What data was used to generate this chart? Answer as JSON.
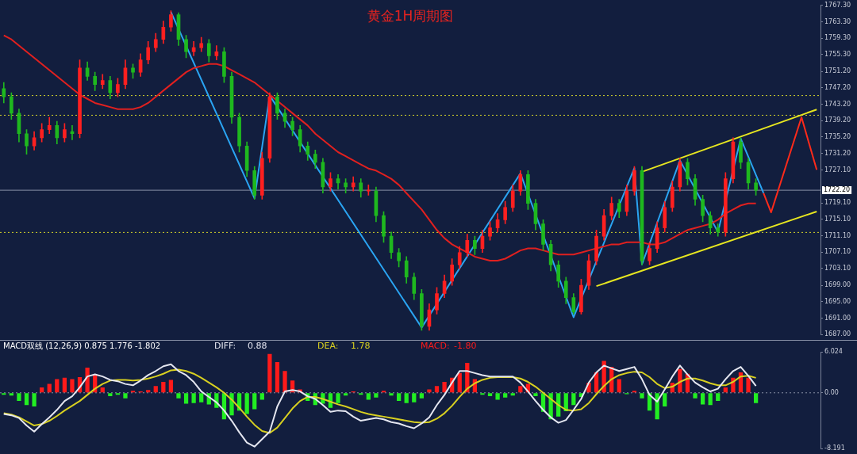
{
  "chart_data": [
    {
      "type": "candlestick",
      "title": "黄金1H周期图",
      "categories": [
        null,
        null,
        null,
        null,
        null,
        null,
        null,
        null,
        null,
        null,
        null,
        null,
        null,
        null,
        null,
        null,
        null,
        null,
        null,
        null,
        null,
        null,
        null,
        null,
        null,
        null,
        null,
        null,
        null,
        null,
        null,
        null,
        null,
        null,
        null,
        null,
        null,
        null,
        null,
        null,
        null,
        null,
        null,
        null,
        null,
        null,
        null,
        null,
        null,
        null,
        null,
        null,
        null,
        null,
        null,
        null,
        null,
        null,
        null,
        null,
        null,
        null,
        null,
        null,
        null,
        null,
        null,
        null,
        null,
        null,
        null,
        null,
        null,
        null,
        null,
        null,
        null,
        null,
        null,
        null,
        null,
        null,
        null,
        null,
        null,
        null,
        null,
        null,
        null,
        null,
        null,
        null,
        null,
        null,
        null,
        null,
        null,
        null,
        null,
        null,
        null,
        null,
        null,
        null,
        null,
        null,
        null,
        null
      ],
      "ohlc": [
        [
          1747,
          1748.5,
          1743.5,
          1745
        ],
        [
          1745,
          1746,
          1739.5,
          1741
        ],
        [
          1741,
          1742,
          1734,
          1736
        ],
        [
          1736,
          1737,
          1731,
          1733
        ],
        [
          1733,
          1736.5,
          1732,
          1735
        ],
        [
          1735,
          1738.5,
          1734,
          1737
        ],
        [
          1737,
          1740,
          1736,
          1738
        ],
        [
          1738,
          1739,
          1733.5,
          1735
        ],
        [
          1735,
          1738.5,
          1734,
          1737
        ],
        [
          1736.5,
          1738,
          1734.5,
          1736
        ],
        [
          1736,
          1754,
          1735,
          1752
        ],
        [
          1752,
          1753.5,
          1749,
          1750
        ],
        [
          1750,
          1751,
          1746.5,
          1748
        ],
        [
          1748,
          1750.5,
          1747,
          1749
        ],
        [
          1749,
          1750,
          1744.5,
          1746
        ],
        [
          1746,
          1749.5,
          1745,
          1748
        ],
        [
          1748,
          1754,
          1747,
          1752
        ],
        [
          1752,
          1753,
          1749.5,
          1751
        ],
        [
          1751,
          1755.5,
          1750,
          1754
        ],
        [
          1754,
          1758.5,
          1753,
          1757
        ],
        [
          1757,
          1760.5,
          1756,
          1759
        ],
        [
          1759,
          1763.5,
          1758,
          1762
        ],
        [
          1762,
          1766,
          1761,
          1765
        ],
        [
          1765,
          1765.5,
          1757.5,
          1759
        ],
        [
          1759,
          1760,
          1754.5,
          1756
        ],
        [
          1756,
          1758.5,
          1755,
          1757
        ],
        [
          1757,
          1759.5,
          1756,
          1758
        ],
        [
          1758,
          1759,
          1753.5,
          1755
        ],
        [
          1755,
          1757.5,
          1754,
          1756
        ],
        [
          1756,
          1757,
          1748.5,
          1750
        ],
        [
          1750,
          1751,
          1738.5,
          1740
        ],
        [
          1740,
          1741,
          1731.5,
          1733
        ],
        [
          1733,
          1734,
          1725.5,
          1727
        ],
        [
          1727,
          1728,
          1720,
          1721
        ],
        [
          1721,
          1731.5,
          1720,
          1730
        ],
        [
          1730,
          1746,
          1729,
          1745
        ],
        [
          1745,
          1746,
          1739.5,
          1741
        ],
        [
          1741,
          1742,
          1737.5,
          1739
        ],
        [
          1739,
          1740,
          1735.5,
          1737
        ],
        [
          1737,
          1738,
          1731.5,
          1733
        ],
        [
          1733,
          1734,
          1729.5,
          1731
        ],
        [
          1731,
          1732,
          1727.5,
          1729
        ],
        [
          1729,
          1730,
          1721.5,
          1723
        ],
        [
          1723,
          1726.5,
          1722,
          1725
        ],
        [
          1725,
          1726,
          1722.5,
          1724
        ],
        [
          1724,
          1725,
          1721.5,
          1723
        ],
        [
          1723,
          1725.5,
          1722,
          1724
        ],
        [
          1724,
          1725,
          1720.5,
          1722
        ],
        [
          1722,
          1723.5,
          1721,
          1722
        ],
        [
          1722,
          1723,
          1714.5,
          1716
        ],
        [
          1716,
          1717,
          1709.5,
          1711
        ],
        [
          1711,
          1712,
          1705.5,
          1707
        ],
        [
          1707,
          1708,
          1703.5,
          1705
        ],
        [
          1705,
          1706,
          1699.5,
          1701
        ],
        [
          1701,
          1702,
          1695.5,
          1697
        ],
        [
          1697,
          1698,
          1688,
          1689
        ],
        [
          1689,
          1694.5,
          1688,
          1693
        ],
        [
          1693,
          1698.5,
          1692,
          1697
        ],
        [
          1697,
          1701.5,
          1696,
          1700
        ],
        [
          1700,
          1705.5,
          1699,
          1704
        ],
        [
          1704,
          1708.5,
          1703,
          1707
        ],
        [
          1707,
          1711.5,
          1706,
          1710
        ],
        [
          1710,
          1711,
          1706.5,
          1708
        ],
        [
          1708,
          1712.5,
          1707,
          1711
        ],
        [
          1711,
          1714.5,
          1710,
          1713
        ],
        [
          1713,
          1716.5,
          1712,
          1715
        ],
        [
          1715,
          1719.5,
          1714,
          1718
        ],
        [
          1718,
          1723.5,
          1717,
          1722
        ],
        [
          1722,
          1727,
          1721,
          1726
        ],
        [
          1726,
          1727,
          1717.5,
          1719
        ],
        [
          1719,
          1720,
          1712.5,
          1714
        ],
        [
          1714,
          1715,
          1707.5,
          1709
        ],
        [
          1709,
          1710,
          1702.5,
          1704
        ],
        [
          1704,
          1705,
          1698.5,
          1700
        ],
        [
          1700,
          1701,
          1694.5,
          1696
        ],
        [
          1696,
          1697,
          1692,
          1692.5
        ],
        [
          1692.5,
          1700.5,
          1692,
          1699
        ],
        [
          1699,
          1706.5,
          1698,
          1705
        ],
        [
          1705,
          1712.5,
          1704,
          1711
        ],
        [
          1711,
          1717.5,
          1710,
          1716
        ],
        [
          1716,
          1720.5,
          1715,
          1719
        ],
        [
          1719,
          1720,
          1715.5,
          1717
        ],
        [
          1717,
          1723.5,
          1716,
          1722
        ],
        [
          1722,
          1728,
          1721,
          1727
        ],
        [
          1727,
          1728,
          1704,
          1705
        ],
        [
          1705,
          1709.5,
          1704,
          1708
        ],
        [
          1708,
          1714.5,
          1707,
          1713
        ],
        [
          1713,
          1719.5,
          1712,
          1718
        ],
        [
          1718,
          1724.5,
          1717,
          1723
        ],
        [
          1723,
          1730,
          1722,
          1729
        ],
        [
          1729,
          1730,
          1723.5,
          1725
        ],
        [
          1725,
          1726,
          1718.5,
          1720
        ],
        [
          1720,
          1721,
          1714.5,
          1716
        ],
        [
          1716,
          1717,
          1711.5,
          1713
        ],
        [
          1713,
          1714,
          1711,
          1712
        ],
        [
          1712,
          1726.5,
          1711,
          1725
        ],
        [
          1725,
          1735,
          1724,
          1734
        ],
        [
          1734,
          1735,
          1727.5,
          1729
        ],
        [
          1729,
          1730,
          1722.5,
          1724
        ],
        [
          1724,
          1725,
          1721,
          1722.2
        ],
        null,
        null,
        null,
        null,
        null,
        null,
        null,
        null
      ],
      "series": [
        {
          "type": "line",
          "color": "#e0201f",
          "values": [
            1760,
            1759,
            1757.5,
            1756,
            1754.5,
            1753,
            1751.5,
            1750,
            1748.5,
            1747,
            1745.5,
            1744.5,
            1743.5,
            1743,
            1742.5,
            1742,
            1742,
            1742,
            1742.5,
            1743.5,
            1745,
            1746.5,
            1748,
            1749.5,
            1751,
            1752,
            1752.5,
            1753,
            1753,
            1752.5,
            1751.5,
            1750.5,
            1749.5,
            1748.5,
            1747,
            1745.5,
            1744,
            1742.5,
            1741,
            1739.5,
            1738,
            1736,
            1734.5,
            1733,
            1731.5,
            1730.5,
            1729.5,
            1728.5,
            1727.5,
            1727,
            1726,
            1725,
            1723.5,
            1721.5,
            1719.5,
            1717.5,
            1715,
            1712.5,
            1710.5,
            1709,
            1708,
            1707,
            1706,
            1705.5,
            1705,
            1705,
            1705.5,
            1706.5,
            1707.5,
            1708,
            1708,
            1707.5,
            1707,
            1706.5,
            1706.5,
            1706.5,
            1707,
            1707.5,
            1708,
            1708.5,
            1709,
            1709,
            1709.5,
            1709.5,
            1709.5,
            1709,
            1709,
            1709.5,
            1710.5,
            1711.5,
            1712.5,
            1713,
            1713.5,
            1714,
            1715,
            1716.5,
            1717.5,
            1718.5,
            1719,
            1719,
            null,
            null,
            null,
            null,
            null,
            null,
            null,
            null
          ]
        },
        {
          "type": "line",
          "color": "#2aa4f2",
          "values": [
            null,
            null,
            null,
            null,
            null,
            null,
            null,
            null,
            null,
            null,
            null,
            null,
            null,
            null,
            null,
            null,
            null,
            null,
            null,
            null,
            null,
            null,
            1765.7,
            null,
            null,
            null,
            null,
            null,
            null,
            null,
            null,
            null,
            null,
            1720.2,
            null,
            1745.3,
            null,
            null,
            null,
            null,
            null,
            null,
            null,
            null,
            null,
            null,
            null,
            null,
            null,
            null,
            null,
            null,
            null,
            null,
            null,
            1688.7,
            null,
            null,
            null,
            null,
            null,
            null,
            null,
            null,
            null,
            null,
            null,
            null,
            1726.3,
            null,
            null,
            null,
            null,
            null,
            null,
            1691.2,
            null,
            null,
            null,
            null,
            null,
            null,
            null,
            1727.6,
            1704.1,
            null,
            null,
            null,
            null,
            1729.5,
            null,
            null,
            null,
            null,
            1712,
            null,
            null,
            1734.8,
            null,
            null,
            1721.5,
            null,
            null,
            null,
            null,
            null,
            null,
            null
          ]
        },
        {
          "type": "line",
          "color": "#e6e620",
          "values": [
            null,
            null,
            null,
            null,
            null,
            null,
            null,
            null,
            null,
            null,
            null,
            null,
            null,
            null,
            null,
            null,
            null,
            null,
            null,
            null,
            null,
            null,
            null,
            null,
            null,
            null,
            null,
            null,
            null,
            null,
            null,
            null,
            null,
            null,
            null,
            null,
            null,
            null,
            null,
            null,
            null,
            null,
            null,
            null,
            null,
            null,
            null,
            null,
            null,
            null,
            null,
            null,
            null,
            null,
            null,
            null,
            null,
            null,
            null,
            null,
            null,
            null,
            null,
            null,
            null,
            null,
            null,
            null,
            null,
            null,
            null,
            null,
            null,
            null,
            null,
            null,
            null,
            null,
            1698.8,
            null,
            null,
            null,
            null,
            null,
            null,
            null,
            null,
            null,
            null,
            null,
            null,
            null,
            null,
            null,
            null,
            null,
            null,
            null,
            null,
            null,
            null,
            null,
            null,
            null,
            null,
            null,
            null,
            1717
          ]
        },
        {
          "type": "line",
          "color": "#e6e620",
          "values": [
            null,
            null,
            null,
            null,
            null,
            null,
            null,
            null,
            null,
            null,
            null,
            null,
            null,
            null,
            null,
            null,
            null,
            null,
            null,
            null,
            null,
            null,
            null,
            null,
            null,
            null,
            null,
            null,
            null,
            null,
            null,
            null,
            null,
            null,
            null,
            null,
            null,
            null,
            null,
            null,
            null,
            null,
            null,
            null,
            null,
            null,
            null,
            null,
            null,
            null,
            null,
            null,
            null,
            null,
            null,
            null,
            null,
            null,
            null,
            null,
            null,
            null,
            null,
            null,
            null,
            null,
            null,
            null,
            null,
            null,
            null,
            null,
            null,
            null,
            null,
            null,
            null,
            null,
            null,
            null,
            null,
            null,
            null,
            null,
            1726.7,
            null,
            null,
            null,
            null,
            null,
            null,
            null,
            null,
            null,
            null,
            null,
            null,
            null,
            null,
            null,
            null,
            null,
            null,
            null,
            null,
            null,
            null,
            1741.9
          ]
        },
        {
          "type": "line",
          "color": "#ff2a1a",
          "values": [
            null,
            null,
            null,
            null,
            null,
            null,
            null,
            null,
            null,
            null,
            null,
            null,
            null,
            null,
            null,
            null,
            null,
            null,
            null,
            null,
            null,
            null,
            null,
            null,
            null,
            null,
            null,
            null,
            null,
            null,
            null,
            null,
            null,
            null,
            null,
            null,
            null,
            null,
            null,
            null,
            null,
            null,
            null,
            null,
            null,
            null,
            null,
            null,
            null,
            null,
            null,
            null,
            null,
            null,
            null,
            null,
            null,
            null,
            null,
            null,
            null,
            null,
            null,
            null,
            null,
            null,
            null,
            null,
            null,
            null,
            null,
            null,
            null,
            null,
            null,
            null,
            null,
            null,
            null,
            null,
            null,
            null,
            null,
            null,
            null,
            null,
            null,
            null,
            null,
            null,
            null,
            null,
            null,
            null,
            null,
            null,
            null,
            null,
            null,
            null,
            1721.5,
            1716.8,
            null,
            null,
            null,
            1740,
            null,
            1727.2
          ]
        }
      ],
      "ylim": [
        1687,
        1767.3
      ],
      "yticks": [
        {
          "value": 1687,
          "label": "1687.00"
        },
        {
          "value": 1691,
          "label": "1691.00"
        },
        {
          "value": 1695,
          "label": "1695.00"
        },
        {
          "value": 1699,
          "label": "1699.00"
        },
        {
          "value": 1703.1,
          "label": "1703.10"
        },
        {
          "value": 1707.1,
          "label": "1707.10"
        },
        {
          "value": 1711.1,
          "label": "1711.10"
        },
        {
          "value": 1715.1,
          "label": "1715.10"
        },
        {
          "value": 1719.1,
          "label": "1719.10"
        },
        {
          "value": 1727.1,
          "label": "1727.10"
        },
        {
          "value": 1731.2,
          "label": "1731.20"
        },
        {
          "value": 1735.2,
          "label": "1735.20"
        },
        {
          "value": 1739.2,
          "label": "1739.20"
        },
        {
          "value": 1743.2,
          "label": "1743.20"
        },
        {
          "value": 1747.2,
          "label": "1747.20"
        },
        {
          "value": 1751.2,
          "label": "1751.20"
        },
        {
          "value": 1755.3,
          "label": "1755.30"
        },
        {
          "value": 1759.3,
          "label": "1759.30"
        },
        {
          "value": 1763.3,
          "label": "1763.30"
        },
        {
          "value": 1767.3,
          "label": "1767.30"
        }
      ],
      "ref_lines": [
        {
          "axis": "y",
          "value": 1745.3,
          "color": "#d4d42a",
          "line_style": "dotted"
        },
        {
          "axis": "y",
          "value": 1740.5,
          "color": "#d4d42a",
          "line_style": "dotted"
        },
        {
          "axis": "y",
          "value": 1711.9,
          "color": "#d4d42a",
          "line_style": "dotted"
        },
        {
          "axis": "y",
          "value": 1722.2,
          "label": "1722.20",
          "color": "#8a93a8",
          "line_style": "solid"
        }
      ],
      "tick_labels": "y"
    },
    {
      "type": "bar",
      "title": "MACD双线 (12,26,9) 0.875 1.776 -1.802",
      "categories": [
        null,
        null,
        null,
        null,
        null,
        null,
        null,
        null,
        null,
        null,
        null,
        null,
        null,
        null,
        null,
        null,
        null,
        null,
        null,
        null,
        null,
        null,
        null,
        null,
        null,
        null,
        null,
        null,
        null,
        null,
        null,
        null,
        null,
        null,
        null,
        null,
        null,
        null,
        null,
        null,
        null,
        null,
        null,
        null,
        null,
        null,
        null,
        null,
        null,
        null,
        null,
        null,
        null,
        null,
        null,
        null,
        null,
        null,
        null,
        null,
        null,
        null,
        null,
        null,
        null,
        null,
        null,
        null,
        null,
        null,
        null,
        null,
        null,
        null,
        null,
        null,
        null,
        null,
        null,
        null,
        null,
        null,
        null,
        null,
        null,
        null,
        null,
        null,
        null,
        null,
        null,
        null,
        null,
        null,
        null,
        null,
        null,
        null,
        null,
        null,
        null,
        null,
        null,
        null,
        null,
        null,
        null,
        null
      ],
      "series": [
        {
          "type": "line",
          "name": "DIFF:",
          "color": "#e4e6f0",
          "values": [
            -3.1,
            -3.3,
            -3.7,
            -4.8,
            -5.7,
            -4.6,
            -3.6,
            -2.5,
            -1.2,
            -0.5,
            0.8,
            2.4,
            2.7,
            2.4,
            1.9,
            1.7,
            1.3,
            1.1,
            1.8,
            2.6,
            3.2,
            3.9,
            4.2,
            3.2,
            2.6,
            1.6,
            0.2,
            -0.6,
            -1.4,
            -2.6,
            -4.1,
            -5.8,
            -7.3,
            -7.9,
            -6.8,
            -5.7,
            -2.0,
            0.2,
            0.4,
            0.2,
            -0.5,
            -0.9,
            -1.8,
            -2.8,
            -2.6,
            -2.7,
            -3.5,
            -4.1,
            -3.9,
            -3.7,
            -3.9,
            -4.3,
            -4.5,
            -4.9,
            -5.2,
            -4.5,
            -3.6,
            -1.8,
            -0.3,
            1.5,
            3.2,
            3.2,
            2.9,
            2.6,
            2.4,
            2.4,
            2.4,
            2.4,
            1.5,
            0.2,
            -1.2,
            -2.5,
            -3.6,
            -4.4,
            -4.0,
            -2.5,
            -0.9,
            1.5,
            3.0,
            4.0,
            3.6,
            3.2,
            3.5,
            3.8,
            2.0,
            -0.3,
            -1.3,
            0.5,
            2.4,
            4.0,
            2.7,
            1.5,
            0.8,
            0.2,
            0.6,
            2.0,
            3.2,
            3.8,
            2.5,
            1.0,
            null,
            null,
            null,
            null,
            null,
            null,
            null,
            null
          ]
        },
        {
          "type": "line",
          "name": "DEA:",
          "color": "#d8d020",
          "values": [
            -3.0,
            -3.2,
            -3.6,
            -4.2,
            -4.8,
            -4.6,
            -4.1,
            -3.4,
            -2.6,
            -1.9,
            -1.2,
            -0.3,
            0.6,
            1.3,
            1.8,
            1.9,
            1.9,
            1.8,
            1.9,
            2.1,
            2.4,
            2.8,
            3.3,
            3.4,
            3.2,
            2.8,
            2.2,
            1.5,
            0.8,
            0.0,
            -1.0,
            -2.2,
            -3.5,
            -4.7,
            -5.6,
            -5.9,
            -5.1,
            -3.7,
            -2.3,
            -1.2,
            -0.6,
            -0.6,
            -0.9,
            -1.3,
            -1.7,
            -2.0,
            -2.4,
            -2.8,
            -3.1,
            -3.3,
            -3.5,
            -3.7,
            -3.9,
            -4.1,
            -4.3,
            -4.4,
            -4.3,
            -3.8,
            -3.0,
            -1.9,
            -0.6,
            0.6,
            1.4,
            1.9,
            2.2,
            2.3,
            2.3,
            2.3,
            2.1,
            1.6,
            0.9,
            0.0,
            -0.9,
            -1.8,
            -2.5,
            -2.6,
            -2.4,
            -1.5,
            -0.2,
            1.0,
            2.0,
            2.6,
            2.9,
            3.1,
            3.0,
            2.3,
            1.3,
            0.7,
            0.9,
            1.6,
            2.1,
            2.1,
            1.8,
            1.4,
            1.1,
            1.1,
            1.6,
            2.4,
            2.5,
            2.2,
            null,
            null,
            null,
            null,
            null,
            null,
            null,
            null
          ]
        },
        {
          "type": "bar",
          "name": "MACD:",
          "color": "#ff1a1a",
          "values": [
            -0.3,
            -0.4,
            -1.2,
            -1.8,
            -2.0,
            0.8,
            1.3,
            2.0,
            2.2,
            2.0,
            2.3,
            3.7,
            2.6,
            0.8,
            -0.5,
            -0.3,
            -0.8,
            0.3,
            0.2,
            0.4,
            1.0,
            1.6,
            1.9,
            -0.8,
            -1.6,
            -1.5,
            -1.4,
            -1.7,
            -2.2,
            -3.9,
            -3.3,
            -2.6,
            -3.1,
            -2.4,
            -1.0,
            5.7,
            4.5,
            3.2,
            1.8,
            0.5,
            -1.2,
            -1.8,
            -1.6,
            -2.2,
            -1.5,
            -0.4,
            0.2,
            -0.3,
            -1.0,
            -0.7,
            0.3,
            -0.4,
            -1.2,
            -1.5,
            -1.4,
            -0.8,
            0.5,
            1.0,
            1.6,
            2.2,
            2.9,
            4.4,
            2.0,
            -0.3,
            -0.5,
            -1.0,
            -0.7,
            -0.4,
            1.0,
            1.3,
            -0.5,
            -2.8,
            -3.9,
            -3.5,
            -2.7,
            -1.8,
            -0.6,
            1.5,
            3.0,
            4.7,
            3.8,
            2.0,
            -0.2,
            0.3,
            -0.8,
            -2.6,
            -3.9,
            -2.0,
            1.5,
            3.5,
            2.8,
            -0.8,
            -1.7,
            -1.8,
            -1.2,
            0.8,
            2.2,
            3.0,
            2.2,
            -1.5,
            null,
            null,
            null,
            null,
            null,
            null,
            null,
            null
          ],
          "colors": [
            "#22ee22",
            "#22ee22",
            "#22ee22",
            "#22ee22",
            "#22ee22",
            "#ff1a1a",
            "#ff1a1a",
            "#ff1a1a",
            "#ff1a1a",
            "#ff1a1a",
            "#ff1a1a",
            "#ff1a1a",
            "#ff1a1a",
            "#ff1a1a",
            "#22ee22",
            "#22ee22",
            "#22ee22",
            "#ff1a1a",
            "#ff1a1a",
            "#ff1a1a",
            "#ff1a1a",
            "#ff1a1a",
            "#ff1a1a",
            "#22ee22",
            "#22ee22",
            "#22ee22",
            "#22ee22",
            "#22ee22",
            "#22ee22",
            "#22ee22",
            "#22ee22",
            "#22ee22",
            "#22ee22",
            "#22ee22",
            "#22ee22",
            "#ff1a1a",
            "#ff1a1a",
            "#ff1a1a",
            "#ff1a1a",
            "#ff1a1a",
            "#22ee22",
            "#22ee22",
            "#22ee22",
            "#22ee22",
            "#22ee22",
            "#22ee22",
            "#ff1a1a",
            "#22ee22",
            "#22ee22",
            "#22ee22",
            "#ff1a1a",
            "#22ee22",
            "#22ee22",
            "#22ee22",
            "#22ee22",
            "#22ee22",
            "#ff1a1a",
            "#ff1a1a",
            "#ff1a1a",
            "#ff1a1a",
            "#ff1a1a",
            "#ff1a1a",
            "#ff1a1a",
            "#22ee22",
            "#22ee22",
            "#22ee22",
            "#22ee22",
            "#22ee22",
            "#ff1a1a",
            "#ff1a1a",
            "#22ee22",
            "#22ee22",
            "#22ee22",
            "#22ee22",
            "#22ee22",
            "#22ee22",
            "#22ee22",
            "#ff1a1a",
            "#ff1a1a",
            "#ff1a1a",
            "#ff1a1a",
            "#ff1a1a",
            "#22ee22",
            "#ff1a1a",
            "#22ee22",
            "#22ee22",
            "#22ee22",
            "#22ee22",
            "#ff1a1a",
            "#ff1a1a",
            "#ff1a1a",
            "#22ee22",
            "#22ee22",
            "#22ee22",
            "#22ee22",
            "#ff1a1a",
            "#ff1a1a",
            "#ff1a1a",
            "#ff1a1a",
            "#22ee22",
            null,
            null,
            null,
            null,
            null,
            null,
            null,
            null
          ]
        }
      ],
      "annotations": [
        "0.88",
        "1.78",
        "-1.80"
      ],
      "ylim": [
        -8.191,
        6.024
      ],
      "yticks": [
        {
          "value": 6.024,
          "label": "6.024"
        },
        {
          "value": 0,
          "label": "0.00"
        },
        {
          "value": -8.191,
          "label": "-8.191"
        }
      ],
      "ref_lines": [
        {
          "axis": "y",
          "value": 0,
          "color": "#8a93a8",
          "line_style": "dotted"
        }
      ],
      "tick_labels": "y"
    }
  ]
}
